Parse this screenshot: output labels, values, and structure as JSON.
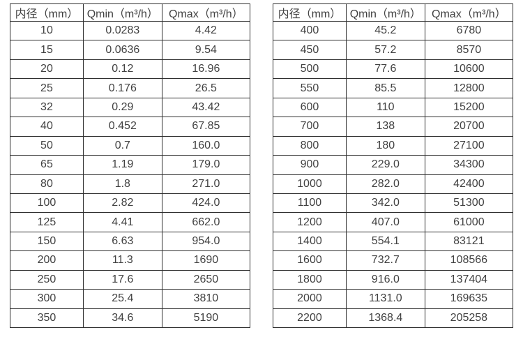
{
  "colors": {
    "background": "#ffffff",
    "border": "#2e2e2e",
    "text": "#414141"
  },
  "chart_data": [
    {
      "type": "table",
      "name": "flow-table-small-diameters",
      "columns": [
        "内径（mm）",
        "Qmin（m³/h）",
        "Qmax（m³/h）"
      ],
      "rows": [
        [
          "10",
          "0.0283",
          "4.42"
        ],
        [
          "15",
          "0.0636",
          "9.54"
        ],
        [
          "20",
          "0.12",
          "16.96"
        ],
        [
          "25",
          "0.176",
          "26.5"
        ],
        [
          "32",
          "0.29",
          "43.42"
        ],
        [
          "40",
          "0.452",
          "67.85"
        ],
        [
          "50",
          "0.7",
          "160.0"
        ],
        [
          "65",
          "1.19",
          "179.0"
        ],
        [
          "80",
          "1.8",
          "271.0"
        ],
        [
          "100",
          "2.82",
          "424.0"
        ],
        [
          "125",
          "4.41",
          "662.0"
        ],
        [
          "150",
          "6.63",
          "954.0"
        ],
        [
          "200",
          "11.3",
          "1690"
        ],
        [
          "250",
          "17.6",
          "2650"
        ],
        [
          "300",
          "25.4",
          "3810"
        ],
        [
          "350",
          "34.6",
          "5190"
        ]
      ]
    },
    {
      "type": "table",
      "name": "flow-table-large-diameters",
      "columns": [
        "内径（mm）",
        "Qmin（m³/h）",
        "Qmax（m³/h）"
      ],
      "rows": [
        [
          "400",
          "45.2",
          "6780"
        ],
        [
          "450",
          "57.2",
          "8570"
        ],
        [
          "500",
          "77.6",
          "10600"
        ],
        [
          "550",
          "85.5",
          "12800"
        ],
        [
          "600",
          "110",
          "15200"
        ],
        [
          "700",
          "138",
          "20700"
        ],
        [
          "800",
          "180",
          "27100"
        ],
        [
          "900",
          "229.0",
          "34300"
        ],
        [
          "1000",
          "282.0",
          "42400"
        ],
        [
          "1100",
          "342.0",
          "51300"
        ],
        [
          "1200",
          "407.0",
          "61000"
        ],
        [
          "1400",
          "554.1",
          "83121"
        ],
        [
          "1600",
          "732.7",
          "108566"
        ],
        [
          "1800",
          "916.0",
          "137404"
        ],
        [
          "2000",
          "1131.0",
          "169635"
        ],
        [
          "2200",
          "1368.4",
          "205258"
        ]
      ]
    }
  ]
}
